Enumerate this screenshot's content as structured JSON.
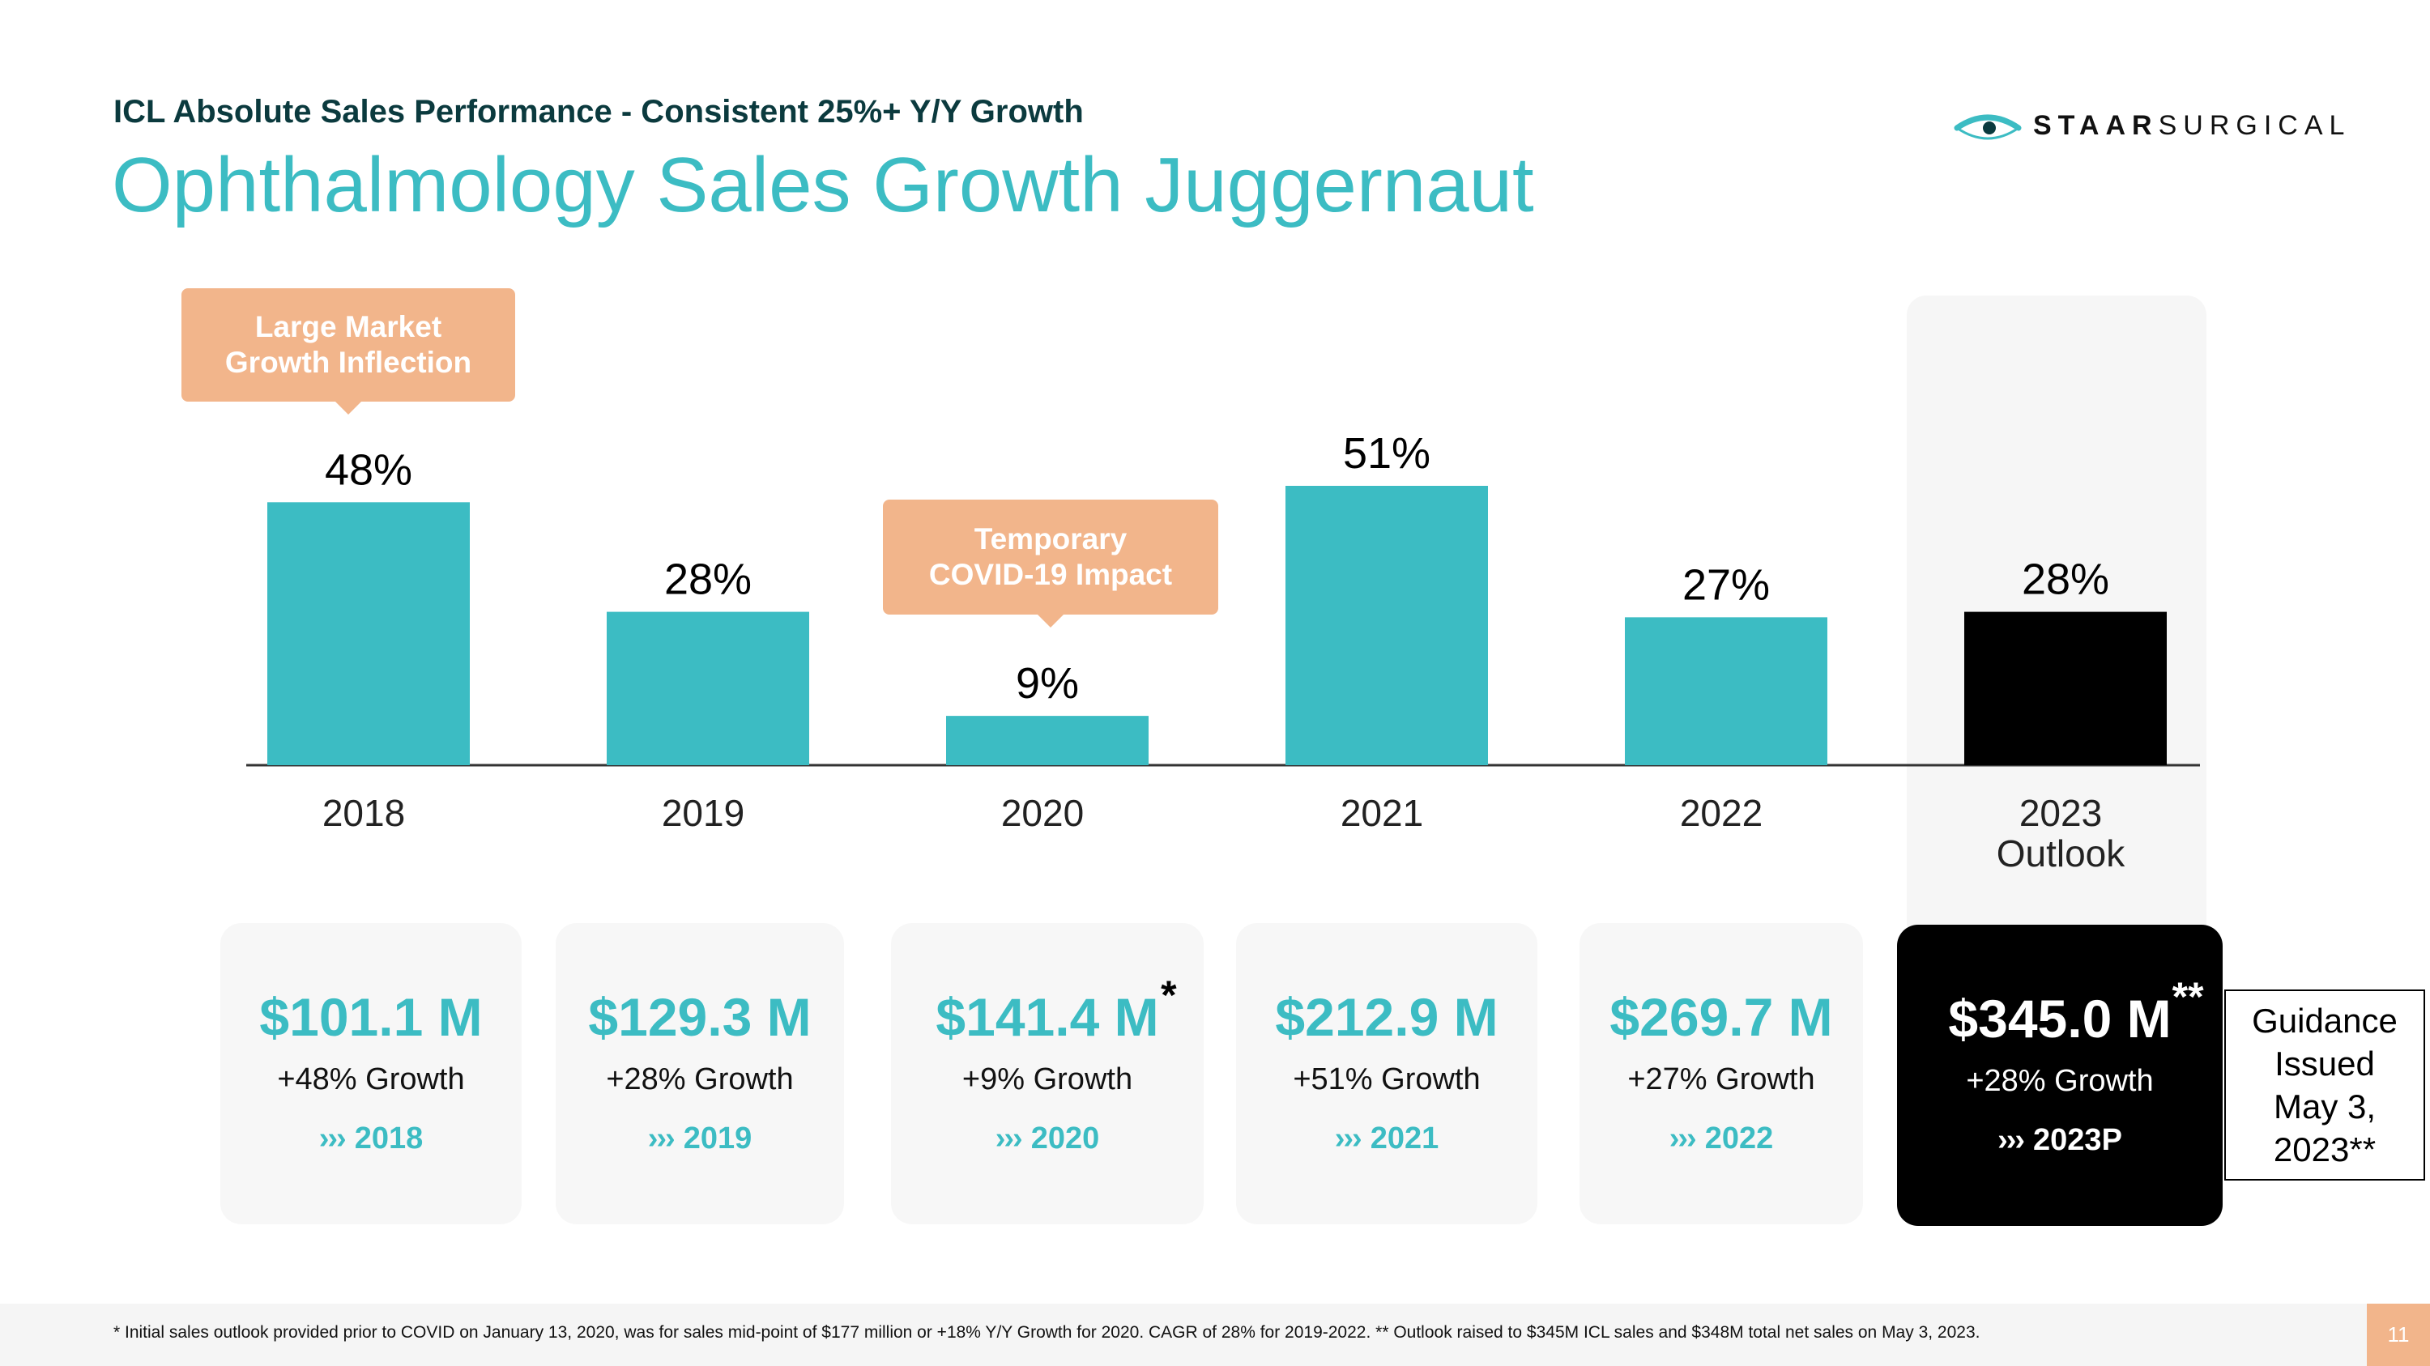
{
  "header": {
    "subtitle": "ICL Absolute Sales Performance - Consistent 25%+ Y/Y Growth",
    "title": "Ophthalmology Sales Growth Juggernaut"
  },
  "logo": {
    "bold": "STAAR",
    "light": "SURGICAL",
    "icon": "eye-logo-icon"
  },
  "colors": {
    "teal": "#3cbcc3",
    "highlight": "#000000",
    "callout": "#f2b58b",
    "heading": "#0b3a3e"
  },
  "callouts": [
    {
      "line1": "Large Market",
      "line2": "Growth Inflection"
    },
    {
      "line1": "Temporary",
      "line2": "COVID-19 Impact"
    }
  ],
  "chart_data": {
    "type": "bar",
    "categories": [
      "2018",
      "2019",
      "2020",
      "2021",
      "2022",
      "2023 Outlook"
    ],
    "values": [
      48,
      28,
      9,
      51,
      27,
      28
    ],
    "value_labels": [
      "48%",
      "28%",
      "9%",
      "51%",
      "27%",
      "28%"
    ],
    "highlight_index": 5,
    "ylim": [
      0,
      60
    ],
    "grid": false
  },
  "cards": [
    {
      "amount": "$101.1 M",
      "growth": "+48% Growth",
      "year": "2018",
      "chevron": "›››",
      "mark": ""
    },
    {
      "amount": "$129.3 M",
      "growth": "+28% Growth",
      "year": "2019",
      "chevron": "›››",
      "mark": ""
    },
    {
      "amount": "$141.4 M",
      "growth": "+9% Growth",
      "year": "2020",
      "chevron": "›››",
      "mark": "*"
    },
    {
      "amount": "$212.9 M",
      "growth": "+51% Growth",
      "year": "2021",
      "chevron": "›››",
      "mark": ""
    },
    {
      "amount": "$269.7 M",
      "growth": "+27% Growth",
      "year": "2022",
      "chevron": "›››",
      "mark": ""
    },
    {
      "amount": "$345.0 M",
      "growth": "+28% Growth",
      "year": "2023P",
      "chevron": "›››",
      "mark": "**"
    }
  ],
  "guidance": {
    "line1": "Guidance",
    "line2": "Issued",
    "line3": "May 3,",
    "line4": "2023**"
  },
  "footer": {
    "note": "* Initial sales outlook provided prior to COVID on January 13, 2020, was for sales mid-point of $177 million or +18% Y/Y Growth for 2020. CAGR of 28% for 2019-2022. ** Outlook raised to $345M ICL sales and $348M total net sales on May 3, 2023.",
    "page": "11"
  }
}
